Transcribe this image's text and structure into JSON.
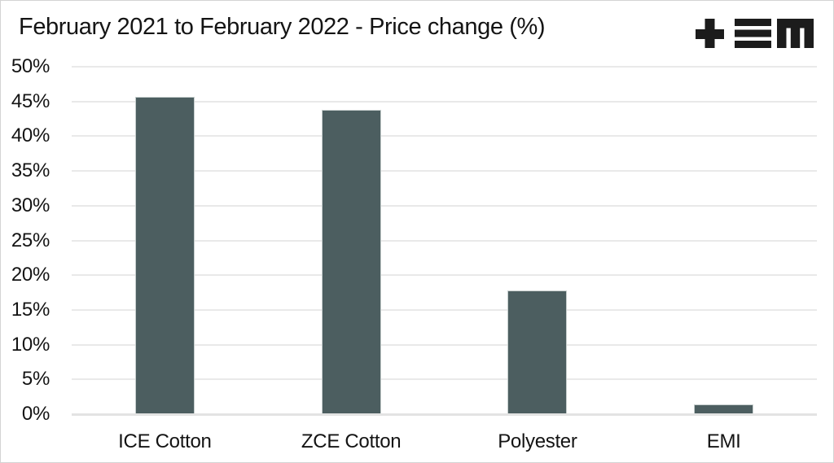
{
  "title": "February 2021 to February 2022 - Price change (%)",
  "logo": {
    "name": "plus-bars-m brand mark",
    "color": "#1c1c1c"
  },
  "colors": {
    "background": "#ffffff",
    "page_border": "#d4d4d4",
    "bar_fill": "#4c5e60",
    "bar_outline": "#c6cecd",
    "gridline": "#e9e9e9",
    "text": "#141414"
  },
  "chart_data": {
    "type": "bar",
    "title": "February 2021 to February 2022 - Price change (%)",
    "categories": [
      "ICE Cotton",
      "ZCE Cotton",
      "Polyester",
      "EMI"
    ],
    "values": [
      45.5,
      43.7,
      17.7,
      1.3
    ],
    "xlabel": "",
    "ylabel": "",
    "ylim": [
      0,
      50
    ],
    "ytick_step": 5,
    "ytick_labels": [
      "0%",
      "5%",
      "10%",
      "15%",
      "20%",
      "25%",
      "30%",
      "35%",
      "40%",
      "45%",
      "50%"
    ],
    "grid": true,
    "legend": false,
    "bar_color": "#4c5e60"
  }
}
